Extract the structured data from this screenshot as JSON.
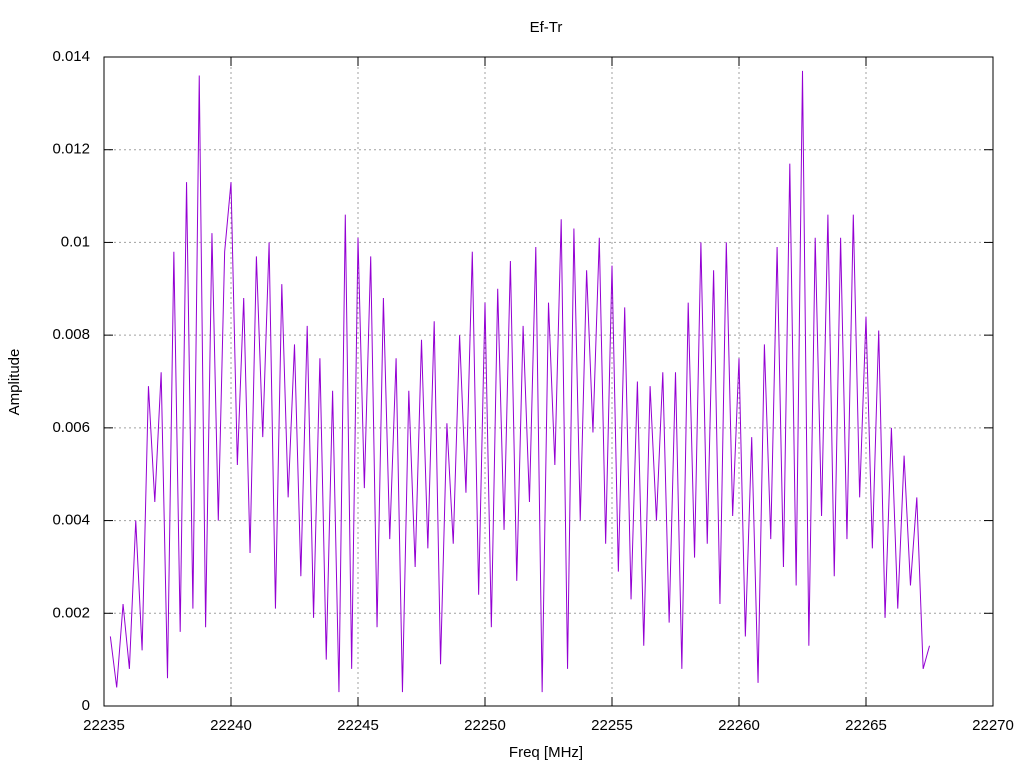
{
  "chart_data": {
    "type": "line",
    "title": "Ef-Tr",
    "x_label": "Freq [MHz]",
    "y_label": "Amplitude",
    "color": "#9400d3",
    "grid": true,
    "xlim": [
      22235,
      22270
    ],
    "xticks": [
      22235,
      22240,
      22245,
      22250,
      22255,
      22260,
      22265,
      22270
    ],
    "ylim": [
      0,
      0.014
    ],
    "yticks": [
      0,
      0.002,
      0.004,
      0.006,
      0.008,
      0.01,
      0.012,
      0.014
    ],
    "x": [
      22235.25,
      22235.5,
      22235.75,
      22236,
      22236.25,
      22236.5,
      22236.75,
      22237,
      22237.25,
      22237.5,
      22237.75,
      22238,
      22238.25,
      22238.5,
      22238.75,
      22239,
      22239.25,
      22239.5,
      22239.75,
      22240,
      22240.25,
      22240.5,
      22240.75,
      22241,
      22241.25,
      22241.5,
      22241.75,
      22242,
      22242.25,
      22242.5,
      22242.75,
      22243,
      22243.25,
      22243.5,
      22243.75,
      22244,
      22244.25,
      22244.5,
      22244.75,
      22245,
      22245.25,
      22245.5,
      22245.75,
      22246,
      22246.25,
      22246.5,
      22246.75,
      22247,
      22247.25,
      22247.5,
      22247.75,
      22248,
      22248.25,
      22248.5,
      22248.75,
      22249,
      22249.25,
      22249.5,
      22249.75,
      22250,
      22250.25,
      22250.5,
      22250.75,
      22251,
      22251.25,
      22251.5,
      22251.75,
      22252,
      22252.25,
      22252.5,
      22252.75,
      22253,
      22253.25,
      22253.5,
      22253.75,
      22254,
      22254.25,
      22254.5,
      22254.75,
      22255,
      22255.25,
      22255.5,
      22255.75,
      22256,
      22256.25,
      22256.5,
      22256.75,
      22257,
      22257.25,
      22257.5,
      22257.75,
      22258,
      22258.25,
      22258.5,
      22258.75,
      22259,
      22259.25,
      22259.5,
      22259.75,
      22260,
      22260.25,
      22260.5,
      22260.75,
      22261,
      22261.25,
      22261.5,
      22261.75,
      22262,
      22262.25,
      22262.5,
      22262.75,
      22263,
      22263.25,
      22263.5,
      22263.75,
      22264,
      22264.25,
      22264.5,
      22264.75,
      22265,
      22265.25,
      22265.5,
      22265.75,
      22266,
      22266.25,
      22266.5,
      22266.75,
      22267,
      22267.25,
      22267.5
    ],
    "values": [
      0.0015,
      0.0004,
      0.0022,
      0.0008,
      0.004,
      0.0012,
      0.0069,
      0.0044,
      0.0072,
      0.0006,
      0.0098,
      0.0016,
      0.0113,
      0.0021,
      0.0136,
      0.0017,
      0.0102,
      0.004,
      0.0098,
      0.0113,
      0.0052,
      0.0088,
      0.0033,
      0.0097,
      0.0058,
      0.01,
      0.0021,
      0.0091,
      0.0045,
      0.0078,
      0.0028,
      0.0082,
      0.0019,
      0.0075,
      0.001,
      0.0068,
      0.0003,
      0.0106,
      0.0008,
      0.0101,
      0.0047,
      0.0097,
      0.0017,
      0.0088,
      0.0036,
      0.0075,
      0.0003,
      0.0068,
      0.003,
      0.0079,
      0.0034,
      0.0083,
      0.0009,
      0.0061,
      0.0035,
      0.008,
      0.0046,
      0.0098,
      0.0024,
      0.0087,
      0.0017,
      0.009,
      0.0038,
      0.0096,
      0.0027,
      0.0082,
      0.0044,
      0.0099,
      0.0003,
      0.0087,
      0.0052,
      0.0105,
      0.0008,
      0.0103,
      0.004,
      0.0094,
      0.0059,
      0.0101,
      0.0035,
      0.0095,
      0.0029,
      0.0086,
      0.0023,
      0.007,
      0.0013,
      0.0069,
      0.004,
      0.0072,
      0.0018,
      0.0072,
      0.0008,
      0.0087,
      0.0032,
      0.01,
      0.0035,
      0.0094,
      0.0022,
      0.01,
      0.0041,
      0.0075,
      0.0015,
      0.0058,
      0.0005,
      0.0078,
      0.0036,
      0.0099,
      0.003,
      0.0117,
      0.0026,
      0.0137,
      0.0013,
      0.0101,
      0.0041,
      0.0106,
      0.0028,
      0.0101,
      0.0036,
      0.0106,
      0.0045,
      0.0084,
      0.0034,
      0.0081,
      0.0019,
      0.006,
      0.0021,
      0.0054,
      0.0026,
      0.0045,
      0.0008,
      0.0013
    ]
  }
}
